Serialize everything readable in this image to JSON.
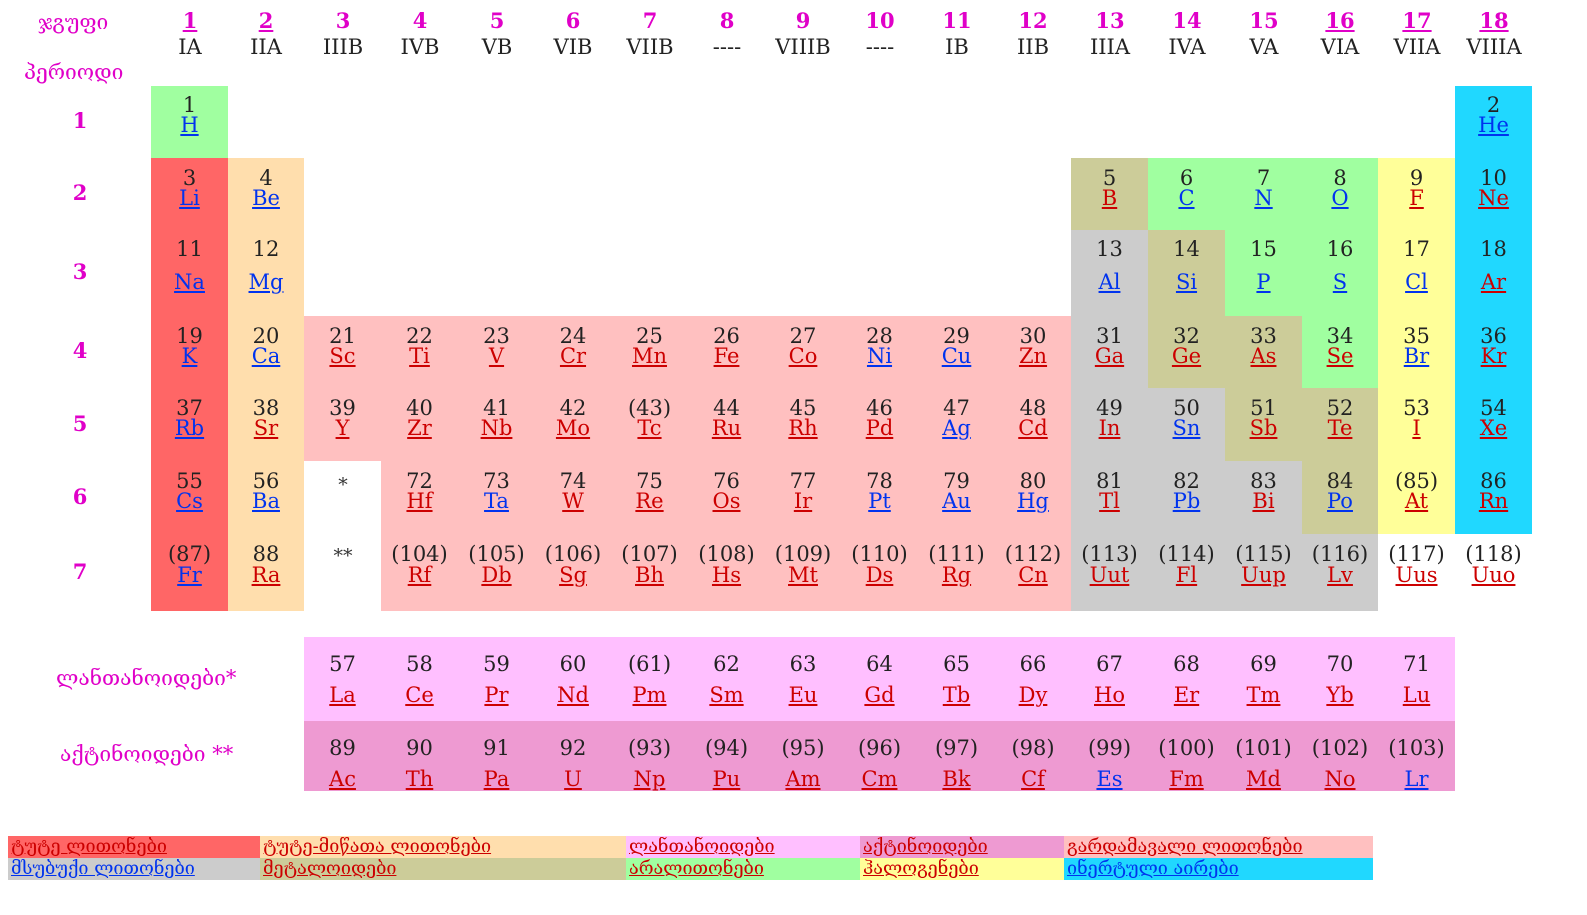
{
  "headers": {
    "group_label": "ჯგუფი",
    "period_label": "პერიოდი",
    "lanthanides_label": "ლანთანოიდები*",
    "actinides_label": "აქტინოიდები **",
    "star1": "*",
    "star2": "**"
  },
  "groups": [
    {
      "num": "1",
      "roman": "IA",
      "underline": true
    },
    {
      "num": "2",
      "roman": "IIA",
      "underline": true
    },
    {
      "num": "3",
      "roman": "IIIB",
      "underline": false
    },
    {
      "num": "4",
      "roman": "IVB",
      "underline": false
    },
    {
      "num": "5",
      "roman": "VB",
      "underline": false
    },
    {
      "num": "6",
      "roman": "VIB",
      "underline": false
    },
    {
      "num": "7",
      "roman": "VIIB",
      "underline": false
    },
    {
      "num": "8",
      "roman": "----",
      "underline": false
    },
    {
      "num": "9",
      "roman": "VIIIB",
      "underline": false
    },
    {
      "num": "10",
      "roman": "----",
      "underline": false
    },
    {
      "num": "11",
      "roman": "IB",
      "underline": false
    },
    {
      "num": "12",
      "roman": "IIB",
      "underline": false
    },
    {
      "num": "13",
      "roman": "IIIA",
      "underline": false
    },
    {
      "num": "14",
      "roman": "IVA",
      "underline": false
    },
    {
      "num": "15",
      "roman": "VA",
      "underline": false
    },
    {
      "num": "16",
      "roman": "VIA",
      "underline": true
    },
    {
      "num": "17",
      "roman": "VIIA",
      "underline": true
    },
    {
      "num": "18",
      "roman": "VIIIA",
      "underline": true
    }
  ],
  "periods": [
    "1",
    "2",
    "3",
    "4",
    "5",
    "6",
    "7"
  ],
  "colors": {
    "alkali": "#ff6666",
    "alkaline": "#ffdead",
    "transition": "#ffc0c0",
    "poor": "#cccccc",
    "metalloid": "#cccc99",
    "nonmetal": "#a0ffa0",
    "halogen": "#ffff99",
    "noble": "#20d8ff",
    "lanthanide": "#ffbfff",
    "actinide": "#ee9ad2"
  },
  "elements": [
    {
      "n": "1",
      "s": "H",
      "g": 1,
      "p": 1,
      "c": "nonmetal",
      "t": "blue"
    },
    {
      "n": "2",
      "s": "He",
      "g": 18,
      "p": 1,
      "c": "noble",
      "t": "blue"
    },
    {
      "n": "3",
      "s": "Li",
      "g": 1,
      "p": 2,
      "c": "alkali",
      "t": "blue"
    },
    {
      "n": "4",
      "s": "Be",
      "g": 2,
      "p": 2,
      "c": "alkaline",
      "t": "blue"
    },
    {
      "n": "5",
      "s": "B",
      "g": 13,
      "p": 2,
      "c": "metalloid",
      "t": "red"
    },
    {
      "n": "6",
      "s": "C",
      "g": 14,
      "p": 2,
      "c": "nonmetal",
      "t": "blue"
    },
    {
      "n": "7",
      "s": "N",
      "g": 15,
      "p": 2,
      "c": "nonmetal",
      "t": "blue"
    },
    {
      "n": "8",
      "s": "O",
      "g": 16,
      "p": 2,
      "c": "nonmetal",
      "t": "blue"
    },
    {
      "n": "9",
      "s": "F",
      "g": 17,
      "p": 2,
      "c": "halogen",
      "t": "red"
    },
    {
      "n": "10",
      "s": "Ne",
      "g": 18,
      "p": 2,
      "c": "noble",
      "t": "red"
    },
    {
      "n": "11",
      "s": "Na",
      "g": 1,
      "p": 3,
      "c": "alkali",
      "t": "blue"
    },
    {
      "n": "12",
      "s": "Mg",
      "g": 2,
      "p": 3,
      "c": "alkaline",
      "t": "blue"
    },
    {
      "n": "13",
      "s": "Al",
      "g": 13,
      "p": 3,
      "c": "poor",
      "t": "blue"
    },
    {
      "n": "14",
      "s": "Si",
      "g": 14,
      "p": 3,
      "c": "metalloid",
      "t": "blue"
    },
    {
      "n": "15",
      "s": "P",
      "g": 15,
      "p": 3,
      "c": "nonmetal",
      "t": "blue"
    },
    {
      "n": "16",
      "s": "S",
      "g": 16,
      "p": 3,
      "c": "nonmetal",
      "t": "blue"
    },
    {
      "n": "17",
      "s": "Cl",
      "g": 17,
      "p": 3,
      "c": "halogen",
      "t": "blue"
    },
    {
      "n": "18",
      "s": "Ar",
      "g": 18,
      "p": 3,
      "c": "noble",
      "t": "red"
    },
    {
      "n": "19",
      "s": "K",
      "g": 1,
      "p": 4,
      "c": "alkali",
      "t": "blue"
    },
    {
      "n": "20",
      "s": "Ca",
      "g": 2,
      "p": 4,
      "c": "alkaline",
      "t": "blue"
    },
    {
      "n": "21",
      "s": "Sc",
      "g": 3,
      "p": 4,
      "c": "transition",
      "t": "red"
    },
    {
      "n": "22",
      "s": "Ti",
      "g": 4,
      "p": 4,
      "c": "transition",
      "t": "red"
    },
    {
      "n": "23",
      "s": "V",
      "g": 5,
      "p": 4,
      "c": "transition",
      "t": "red"
    },
    {
      "n": "24",
      "s": "Cr",
      "g": 6,
      "p": 4,
      "c": "transition",
      "t": "red"
    },
    {
      "n": "25",
      "s": "Mn",
      "g": 7,
      "p": 4,
      "c": "transition",
      "t": "red"
    },
    {
      "n": "26",
      "s": "Fe",
      "g": 8,
      "p": 4,
      "c": "transition",
      "t": "red"
    },
    {
      "n": "27",
      "s": "Co",
      "g": 9,
      "p": 4,
      "c": "transition",
      "t": "red"
    },
    {
      "n": "28",
      "s": "Ni",
      "g": 10,
      "p": 4,
      "c": "transition",
      "t": "blue"
    },
    {
      "n": "29",
      "s": "Cu",
      "g": 11,
      "p": 4,
      "c": "transition",
      "t": "blue"
    },
    {
      "n": "30",
      "s": "Zn",
      "g": 12,
      "p": 4,
      "c": "transition",
      "t": "red"
    },
    {
      "n": "31",
      "s": "Ga",
      "g": 13,
      "p": 4,
      "c": "poor",
      "t": "red"
    },
    {
      "n": "32",
      "s": "Ge",
      "g": 14,
      "p": 4,
      "c": "metalloid",
      "t": "red"
    },
    {
      "n": "33",
      "s": "As",
      "g": 15,
      "p": 4,
      "c": "metalloid",
      "t": "red"
    },
    {
      "n": "34",
      "s": "Se",
      "g": 16,
      "p": 4,
      "c": "nonmetal",
      "t": "red"
    },
    {
      "n": "35",
      "s": "Br",
      "g": 17,
      "p": 4,
      "c": "halogen",
      "t": "blue"
    },
    {
      "n": "36",
      "s": "Kr",
      "g": 18,
      "p": 4,
      "c": "noble",
      "t": "red"
    },
    {
      "n": "37",
      "s": "Rb",
      "g": 1,
      "p": 5,
      "c": "alkali",
      "t": "blue"
    },
    {
      "n": "38",
      "s": "Sr",
      "g": 2,
      "p": 5,
      "c": "alkaline",
      "t": "red"
    },
    {
      "n": "39",
      "s": "Y",
      "g": 3,
      "p": 5,
      "c": "transition",
      "t": "red"
    },
    {
      "n": "40",
      "s": "Zr",
      "g": 4,
      "p": 5,
      "c": "transition",
      "t": "red"
    },
    {
      "n": "41",
      "s": "Nb",
      "g": 5,
      "p": 5,
      "c": "transition",
      "t": "red"
    },
    {
      "n": "42",
      "s": "Mo",
      "g": 6,
      "p": 5,
      "c": "transition",
      "t": "red"
    },
    {
      "n": "(43)",
      "s": "Tc",
      "g": 7,
      "p": 5,
      "c": "transition",
      "t": "red"
    },
    {
      "n": "44",
      "s": "Ru",
      "g": 8,
      "p": 5,
      "c": "transition",
      "t": "red"
    },
    {
      "n": "45",
      "s": "Rh",
      "g": 9,
      "p": 5,
      "c": "transition",
      "t": "red"
    },
    {
      "n": "46",
      "s": "Pd",
      "g": 10,
      "p": 5,
      "c": "transition",
      "t": "red"
    },
    {
      "n": "47",
      "s": "Ag",
      "g": 11,
      "p": 5,
      "c": "transition",
      "t": "blue"
    },
    {
      "n": "48",
      "s": "Cd",
      "g": 12,
      "p": 5,
      "c": "transition",
      "t": "red"
    },
    {
      "n": "49",
      "s": "In",
      "g": 13,
      "p": 5,
      "c": "poor",
      "t": "red"
    },
    {
      "n": "50",
      "s": "Sn",
      "g": 14,
      "p": 5,
      "c": "poor",
      "t": "blue"
    },
    {
      "n": "51",
      "s": "Sb",
      "g": 15,
      "p": 5,
      "c": "metalloid",
      "t": "red"
    },
    {
      "n": "52",
      "s": "Te",
      "g": 16,
      "p": 5,
      "c": "metalloid",
      "t": "red"
    },
    {
      "n": "53",
      "s": "I",
      "g": 17,
      "p": 5,
      "c": "halogen",
      "t": "red"
    },
    {
      "n": "54",
      "s": "Xe",
      "g": 18,
      "p": 5,
      "c": "noble",
      "t": "red"
    },
    {
      "n": "55",
      "s": "Cs",
      "g": 1,
      "p": 6,
      "c": "alkali",
      "t": "blue"
    },
    {
      "n": "56",
      "s": "Ba",
      "g": 2,
      "p": 6,
      "c": "alkaline",
      "t": "blue"
    },
    {
      "n": "72",
      "s": "Hf",
      "g": 4,
      "p": 6,
      "c": "transition",
      "t": "red"
    },
    {
      "n": "73",
      "s": "Ta",
      "g": 5,
      "p": 6,
      "c": "transition",
      "t": "blue"
    },
    {
      "n": "74",
      "s": "W",
      "g": 6,
      "p": 6,
      "c": "transition",
      "t": "red"
    },
    {
      "n": "75",
      "s": "Re",
      "g": 7,
      "p": 6,
      "c": "transition",
      "t": "red"
    },
    {
      "n": "76",
      "s": "Os",
      "g": 8,
      "p": 6,
      "c": "transition",
      "t": "red"
    },
    {
      "n": "77",
      "s": "Ir",
      "g": 9,
      "p": 6,
      "c": "transition",
      "t": "red"
    },
    {
      "n": "78",
      "s": "Pt",
      "g": 10,
      "p": 6,
      "c": "transition",
      "t": "blue"
    },
    {
      "n": "79",
      "s": "Au",
      "g": 11,
      "p": 6,
      "c": "transition",
      "t": "blue"
    },
    {
      "n": "80",
      "s": "Hg",
      "g": 12,
      "p": 6,
      "c": "transition",
      "t": "blue"
    },
    {
      "n": "81",
      "s": "Tl",
      "g": 13,
      "p": 6,
      "c": "poor",
      "t": "red"
    },
    {
      "n": "82",
      "s": "Pb",
      "g": 14,
      "p": 6,
      "c": "poor",
      "t": "blue"
    },
    {
      "n": "83",
      "s": "Bi",
      "g": 15,
      "p": 6,
      "c": "poor",
      "t": "red"
    },
    {
      "n": "84",
      "s": "Po",
      "g": 16,
      "p": 6,
      "c": "metalloid",
      "t": "blue"
    },
    {
      "n": "(85)",
      "s": "At",
      "g": 17,
      "p": 6,
      "c": "halogen",
      "t": "red"
    },
    {
      "n": "86",
      "s": "Rn",
      "g": 18,
      "p": 6,
      "c": "noble",
      "t": "red"
    },
    {
      "n": "(87)",
      "s": "Fr",
      "g": 1,
      "p": 7,
      "c": "alkali",
      "t": "blue"
    },
    {
      "n": "88",
      "s": "Ra",
      "g": 2,
      "p": 7,
      "c": "alkaline",
      "t": "red"
    },
    {
      "n": "(104)",
      "s": "Rf",
      "g": 4,
      "p": 7,
      "c": "transition",
      "t": "red"
    },
    {
      "n": "(105)",
      "s": "Db",
      "g": 5,
      "p": 7,
      "c": "transition",
      "t": "red"
    },
    {
      "n": "(106)",
      "s": "Sg",
      "g": 6,
      "p": 7,
      "c": "transition",
      "t": "red"
    },
    {
      "n": "(107)",
      "s": "Bh",
      "g": 7,
      "p": 7,
      "c": "transition",
      "t": "red"
    },
    {
      "n": "(108)",
      "s": "Hs",
      "g": 8,
      "p": 7,
      "c": "transition",
      "t": "red"
    },
    {
      "n": "(109)",
      "s": "Mt",
      "g": 9,
      "p": 7,
      "c": "transition",
      "t": "red"
    },
    {
      "n": "(110)",
      "s": "Ds",
      "g": 10,
      "p": 7,
      "c": "transition",
      "t": "red"
    },
    {
      "n": "(111)",
      "s": "Rg",
      "g": 11,
      "p": 7,
      "c": "transition",
      "t": "red"
    },
    {
      "n": "(112)",
      "s": "Cn",
      "g": 12,
      "p": 7,
      "c": "transition",
      "t": "red"
    },
    {
      "n": "(113)",
      "s": "Uut",
      "g": 13,
      "p": 7,
      "c": "poor",
      "t": "red"
    },
    {
      "n": "(114)",
      "s": "Fl",
      "g": 14,
      "p": 7,
      "c": "poor",
      "t": "red"
    },
    {
      "n": "(115)",
      "s": "Uup",
      "g": 15,
      "p": 7,
      "c": "poor",
      "t": "red"
    },
    {
      "n": "(116)",
      "s": "Lv",
      "g": 16,
      "p": 7,
      "c": "poor",
      "t": "red"
    },
    {
      "n": "(117)",
      "s": "Uus",
      "g": 17,
      "p": 7,
      "c": "none",
      "t": "red"
    },
    {
      "n": "(118)",
      "s": "Uuo",
      "g": 18,
      "p": 7,
      "c": "none",
      "t": "red"
    }
  ],
  "lanthanides": [
    {
      "n": "57",
      "s": "La",
      "t": "red"
    },
    {
      "n": "58",
      "s": "Ce",
      "t": "red"
    },
    {
      "n": "59",
      "s": "Pr",
      "t": "red"
    },
    {
      "n": "60",
      "s": "Nd",
      "t": "red"
    },
    {
      "n": "(61)",
      "s": "Pm",
      "t": "red"
    },
    {
      "n": "62",
      "s": "Sm",
      "t": "red"
    },
    {
      "n": "63",
      "s": "Eu",
      "t": "red"
    },
    {
      "n": "64",
      "s": "Gd",
      "t": "red"
    },
    {
      "n": "65",
      "s": "Tb",
      "t": "red"
    },
    {
      "n": "66",
      "s": "Dy",
      "t": "red"
    },
    {
      "n": "67",
      "s": "Ho",
      "t": "red"
    },
    {
      "n": "68",
      "s": "Er",
      "t": "red"
    },
    {
      "n": "69",
      "s": "Tm",
      "t": "red"
    },
    {
      "n": "70",
      "s": "Yb",
      "t": "red"
    },
    {
      "n": "71",
      "s": "Lu",
      "t": "red"
    }
  ],
  "actinides": [
    {
      "n": "89",
      "s": "Ac",
      "t": "red"
    },
    {
      "n": "90",
      "s": "Th",
      "t": "red"
    },
    {
      "n": "91",
      "s": "Pa",
      "t": "red"
    },
    {
      "n": "92",
      "s": "U",
      "t": "red"
    },
    {
      "n": "(93)",
      "s": "Np",
      "t": "red"
    },
    {
      "n": "(94)",
      "s": "Pu",
      "t": "red"
    },
    {
      "n": "(95)",
      "s": "Am",
      "t": "red"
    },
    {
      "n": "(96)",
      "s": "Cm",
      "t": "red"
    },
    {
      "n": "(97)",
      "s": "Bk",
      "t": "red"
    },
    {
      "n": "(98)",
      "s": "Cf",
      "t": "red"
    },
    {
      "n": "(99)",
      "s": "Es",
      "t": "blue"
    },
    {
      "n": "(100)",
      "s": "Fm",
      "t": "red"
    },
    {
      "n": "(101)",
      "s": "Md",
      "t": "red"
    },
    {
      "n": "(102)",
      "s": "No",
      "t": "red"
    },
    {
      "n": "(103)",
      "s": "Lr",
      "t": "blue"
    }
  ],
  "legend": [
    {
      "label": "ტუტე ლითონები",
      "c": "alkali",
      "t": "red"
    },
    {
      "label": "ტუტე-მიწათა ლითონები",
      "c": "alkaline",
      "t": "red"
    },
    {
      "label": "ლანთანოიდები",
      "c": "lanthanide",
      "t": "red"
    },
    {
      "label": "აქტინოიდები",
      "c": "actinide",
      "t": "red"
    },
    {
      "label": "გარდამავალი ლითონები",
      "c": "transition",
      "t": "red"
    },
    {
      "label": "მსუბუქი ლითონები",
      "c": "poor",
      "t": "blue"
    },
    {
      "label": "მეტალოიდები",
      "c": "metalloid",
      "t": "red"
    },
    {
      "label": "არალითონები",
      "c": "nonmetal",
      "t": "red"
    },
    {
      "label": "ჰალოგენები",
      "c": "halogen",
      "t": "red"
    },
    {
      "label": "ინერტული აირები",
      "c": "noble",
      "t": "blue"
    }
  ]
}
